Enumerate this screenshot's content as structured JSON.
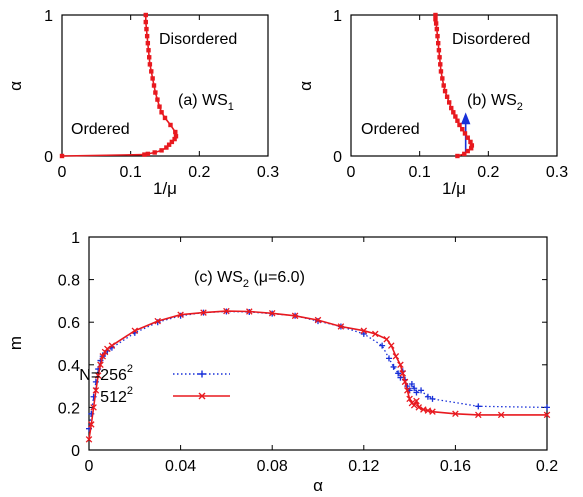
{
  "chart_data": [
    {
      "type": "line",
      "panel": "a",
      "xlabel": "1/μ",
      "ylabel": "α",
      "xlim": [
        0,
        0.3
      ],
      "ylim": [
        0,
        1
      ],
      "xticks": [
        "0",
        "0.1",
        "0.2",
        "0.3"
      ],
      "yticks": [
        "0",
        "1"
      ],
      "annotations": {
        "disordered": "Disordered",
        "ordered": "Ordered",
        "panel_label": "(a) WS",
        "panel_sub": "1"
      },
      "colors": {
        "line": "#e8191f",
        "frame": "#000000"
      },
      "series": [
        {
          "x": [
            0.0,
            0.12,
            0.125,
            0.135,
            0.145,
            0.152,
            0.156,
            0.16,
            0.164,
            0.166,
            0.165,
            0.158,
            0.15,
            0.145,
            0.142,
            0.139,
            0.136,
            0.134,
            0.132,
            0.13,
            0.128,
            0.127,
            0.126,
            0.125,
            0.124,
            0.123,
            0.122,
            0.122
          ],
          "y": [
            0.0,
            0.01,
            0.015,
            0.025,
            0.04,
            0.06,
            0.08,
            0.1,
            0.12,
            0.14,
            0.17,
            0.22,
            0.27,
            0.31,
            0.35,
            0.4,
            0.45,
            0.5,
            0.55,
            0.6,
            0.65,
            0.7,
            0.75,
            0.8,
            0.85,
            0.9,
            0.95,
            1.0
          ]
        }
      ]
    },
    {
      "type": "line",
      "panel": "b",
      "xlabel": "1/μ",
      "ylabel": "α",
      "xlim": [
        0,
        0.3
      ],
      "ylim": [
        0,
        1
      ],
      "xticks": [
        "0",
        "0.1",
        "0.2",
        "0.3"
      ],
      "yticks": [
        "0",
        "1"
      ],
      "annotations": {
        "disordered": "Disordered",
        "ordered": "Ordered",
        "panel_label": "(b) WS",
        "panel_sub": "2"
      },
      "colors": {
        "line": "#e8191f",
        "arrow": "#1830d8",
        "frame": "#000000"
      },
      "arrow": {
        "x": 0.167,
        "y_from": 0.0,
        "y_to": 0.3
      },
      "series": [
        {
          "x": [
            0.155,
            0.165,
            0.17,
            0.175,
            0.176,
            0.174,
            0.17,
            0.166,
            0.162,
            0.158,
            0.155,
            0.152,
            0.149,
            0.146,
            0.143,
            0.14,
            0.137,
            0.135,
            0.133,
            0.131,
            0.13,
            0.129,
            0.128,
            0.127,
            0.126,
            0.125,
            0.124,
            0.123,
            0.123
          ],
          "y": [
            0.0,
            0.015,
            0.035,
            0.055,
            0.075,
            0.1,
            0.13,
            0.16,
            0.19,
            0.22,
            0.25,
            0.28,
            0.31,
            0.34,
            0.38,
            0.42,
            0.46,
            0.5,
            0.55,
            0.6,
            0.65,
            0.7,
            0.75,
            0.8,
            0.85,
            0.9,
            0.94,
            0.97,
            1.0
          ]
        }
      ]
    },
    {
      "type": "line",
      "panel": "c",
      "xlabel": "α",
      "ylabel": "m",
      "xlim": [
        0,
        0.2
      ],
      "ylim": [
        0,
        1
      ],
      "xticks": [
        "0",
        "0.04",
        "0.08",
        "0.12",
        "0.16",
        "0.2"
      ],
      "yticks": [
        "0",
        "0.2",
        "0.4",
        "0.6",
        "0.8",
        "1"
      ],
      "annotations": {
        "panel_label": "(c) WS",
        "panel_sub": "2",
        "panel_tail": " (μ=6.0)"
      },
      "legend_placement": "left",
      "series": [
        {
          "name": "N=256",
          "name_sup": "2",
          "color": "#1830d8",
          "style": "dotted",
          "marker": "plus",
          "x": [
            0.0,
            0.001,
            0.002,
            0.003,
            0.004,
            0.005,
            0.006,
            0.007,
            0.008,
            0.01,
            0.02,
            0.03,
            0.04,
            0.05,
            0.06,
            0.07,
            0.08,
            0.09,
            0.1,
            0.11,
            0.12,
            0.128,
            0.131,
            0.133,
            0.135,
            0.136,
            0.137,
            0.138,
            0.139,
            0.14,
            0.141,
            0.142,
            0.143,
            0.145,
            0.148,
            0.15,
            0.17,
            0.2
          ],
          "y": [
            0.1,
            0.17,
            0.25,
            0.32,
            0.38,
            0.42,
            0.44,
            0.455,
            0.465,
            0.48,
            0.55,
            0.6,
            0.63,
            0.645,
            0.65,
            0.648,
            0.64,
            0.63,
            0.605,
            0.58,
            0.545,
            0.49,
            0.43,
            0.39,
            0.36,
            0.34,
            0.37,
            0.33,
            0.3,
            0.28,
            0.31,
            0.29,
            0.27,
            0.28,
            0.25,
            0.24,
            0.205,
            0.2
          ]
        },
        {
          "name": "512",
          "name_sup": "2",
          "color": "#e8191f",
          "style": "solid",
          "marker": "cross",
          "x": [
            0.0,
            0.001,
            0.002,
            0.003,
            0.004,
            0.005,
            0.006,
            0.007,
            0.008,
            0.01,
            0.02,
            0.03,
            0.04,
            0.05,
            0.06,
            0.07,
            0.08,
            0.09,
            0.1,
            0.11,
            0.12,
            0.125,
            0.13,
            0.132,
            0.134,
            0.136,
            0.137,
            0.138,
            0.139,
            0.14,
            0.141,
            0.142,
            0.143,
            0.144,
            0.146,
            0.148,
            0.15,
            0.16,
            0.17,
            0.18,
            0.2
          ],
          "y": [
            0.05,
            0.12,
            0.2,
            0.28,
            0.35,
            0.4,
            0.44,
            0.46,
            0.475,
            0.49,
            0.56,
            0.605,
            0.635,
            0.645,
            0.652,
            0.65,
            0.642,
            0.63,
            0.61,
            0.58,
            0.56,
            0.545,
            0.52,
            0.49,
            0.44,
            0.4,
            0.36,
            0.32,
            0.28,
            0.24,
            0.22,
            0.21,
            0.23,
            0.2,
            0.19,
            0.185,
            0.18,
            0.17,
            0.165,
            0.165,
            0.165
          ]
        }
      ]
    }
  ]
}
